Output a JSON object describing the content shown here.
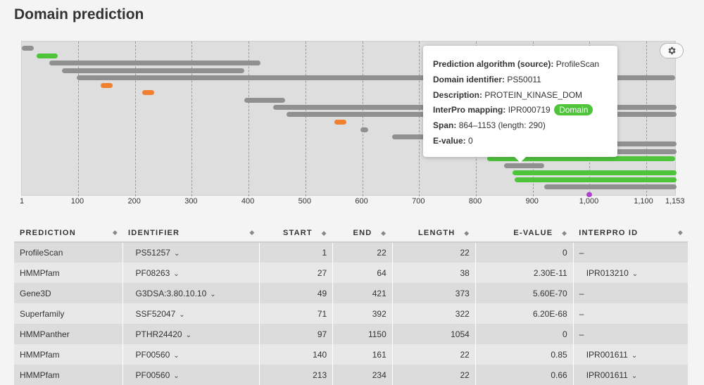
{
  "page": {
    "title": "Domain prediction"
  },
  "axis": {
    "min": 1,
    "max": 1153,
    "ticks": [
      {
        "value": 1,
        "label": "1"
      },
      {
        "value": 100,
        "label": "100"
      },
      {
        "value": 200,
        "label": "200"
      },
      {
        "value": 300,
        "label": "300"
      },
      {
        "value": 400,
        "label": "400"
      },
      {
        "value": 500,
        "label": "500"
      },
      {
        "value": 600,
        "label": "600"
      },
      {
        "value": 700,
        "label": "700"
      },
      {
        "value": 800,
        "label": "800"
      },
      {
        "value": 900,
        "label": "900"
      },
      {
        "value": 1000,
        "label": "1,000"
      },
      {
        "value": 1100,
        "label": "1,100"
      },
      {
        "value": 1153,
        "label": "1,153"
      }
    ]
  },
  "colors": {
    "gray": "#909090",
    "green": "#4dc43a",
    "orange": "#f08030",
    "purple": "#b040d0"
  },
  "tracks": [
    {
      "start": 1,
      "end": 22,
      "color": "gray"
    },
    {
      "start": 27,
      "end": 64,
      "color": "green"
    },
    {
      "start": 49,
      "end": 421,
      "color": "gray"
    },
    {
      "start": 71,
      "end": 392,
      "color": "gray"
    },
    {
      "start": 97,
      "end": 1150,
      "color": "gray"
    },
    {
      "start": 140,
      "end": 161,
      "color": "orange"
    },
    {
      "start": 213,
      "end": 234,
      "color": "orange"
    },
    {
      "start": 393,
      "end": 464,
      "color": "gray"
    },
    {
      "start": 443,
      "end": 1153,
      "color": "gray"
    },
    {
      "start": 467,
      "end": 1153,
      "color": "gray"
    },
    {
      "start": 551,
      "end": 572,
      "color": "orange"
    },
    {
      "start": 597,
      "end": 610,
      "color": "gray"
    },
    {
      "start": 652,
      "end": 710,
      "color": "gray"
    },
    {
      "start": 750,
      "end": 1153,
      "color": "gray"
    },
    {
      "start": 750,
      "end": 1153,
      "color": "gray"
    },
    {
      "start": 820,
      "end": 1150,
      "color": "green"
    },
    {
      "start": 850,
      "end": 920,
      "color": "gray"
    },
    {
      "start": 864,
      "end": 1153,
      "color": "green"
    },
    {
      "start": 868,
      "end": 1153,
      "color": "green"
    },
    {
      "start": 920,
      "end": 1153,
      "color": "gray"
    },
    {
      "start": 994,
      "end": 1004,
      "color": "purple"
    }
  ],
  "tooltip": {
    "algorithm_label": "Prediction algorithm (source):",
    "algorithm_value": "ProfileScan",
    "identifier_label": "Domain identifier:",
    "identifier_value": "PS50011",
    "description_label": "Description:",
    "description_value": "PROTEIN_KINASE_DOM",
    "interpro_label": "InterPro mapping:",
    "interpro_value": "IPR000719",
    "interpro_badge": "Domain",
    "span_label": "Span:",
    "span_value": "864–1153 (length: 290)",
    "evalue_label": "E-value:",
    "evalue_value": "0"
  },
  "table": {
    "columns": [
      "PREDICTION",
      "IDENTIFIER",
      "START",
      "END",
      "LENGTH",
      "E-VALUE",
      "INTERPRO ID"
    ],
    "rows": [
      {
        "prediction": "ProfileScan",
        "identifier": "PS51257",
        "start": "1",
        "end": "22",
        "length": "22",
        "evalue": "0",
        "interpro": "–",
        "interpro_dropdown": false
      },
      {
        "prediction": "HMMPfam",
        "identifier": "PF08263",
        "start": "27",
        "end": "64",
        "length": "38",
        "evalue": "2.30E-11",
        "interpro": "IPR013210",
        "interpro_dropdown": true
      },
      {
        "prediction": "Gene3D",
        "identifier": "G3DSA:3.80.10.10",
        "start": "49",
        "end": "421",
        "length": "373",
        "evalue": "5.60E-70",
        "interpro": "–",
        "interpro_dropdown": false
      },
      {
        "prediction": "Superfamily",
        "identifier": "SSF52047",
        "start": "71",
        "end": "392",
        "length": "322",
        "evalue": "6.20E-68",
        "interpro": "–",
        "interpro_dropdown": false
      },
      {
        "prediction": "HMMPanther",
        "identifier": "PTHR24420",
        "start": "97",
        "end": "1150",
        "length": "1054",
        "evalue": "0",
        "interpro": "–",
        "interpro_dropdown": false
      },
      {
        "prediction": "HMMPfam",
        "identifier": "PF00560",
        "start": "140",
        "end": "161",
        "length": "22",
        "evalue": "0.85",
        "interpro": "IPR001611",
        "interpro_dropdown": true
      },
      {
        "prediction": "HMMPfam",
        "identifier": "PF00560",
        "start": "213",
        "end": "234",
        "length": "22",
        "evalue": "0.66",
        "interpro": "IPR001611",
        "interpro_dropdown": true
      }
    ]
  }
}
